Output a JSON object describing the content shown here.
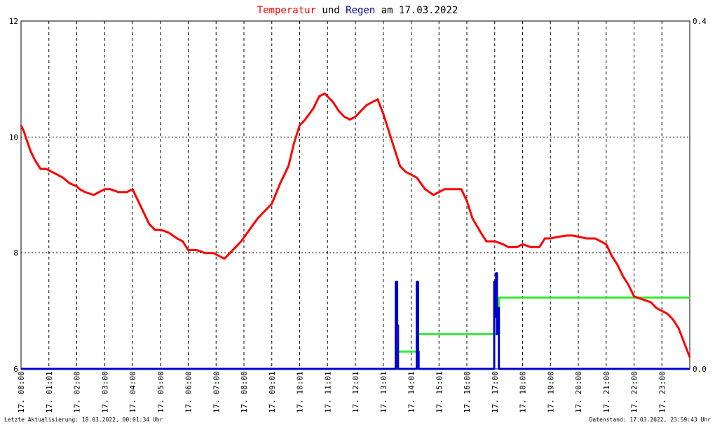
{
  "title": {
    "part1": "Temperatur",
    "part2": " und ",
    "part3": "Regen",
    "part4": " am 17.03.2022",
    "color_temp": "#ff0000",
    "color_rain": "#00008b",
    "color_text": "#000000"
  },
  "footer": {
    "left": "Letzte Aktualisierung: 18.03.2022, 00:01:34 Uhr",
    "right": "Datenstand: 17.03.2022, 23:59:43 Uhr"
  },
  "chart_data": {
    "type": "line",
    "grid": true,
    "x_unit": "hours",
    "xlim": [
      0,
      24
    ],
    "ylim_left": [
      6,
      12
    ],
    "yticks_left": [
      "6",
      "8",
      "10",
      "12"
    ],
    "ylim_right": [
      0,
      0.4
    ],
    "yticks_right": [
      "0.0",
      "0.4"
    ],
    "x_tick_labels": [
      "17. 00:00",
      "17. 01:01",
      "17. 02:00",
      "17. 03:00",
      "17. 04:00",
      "17. 05:00",
      "17. 06:00",
      "17. 07:00",
      "17. 08:00",
      "17. 09:01",
      "17. 10:01",
      "17. 11:01",
      "17. 12:01",
      "17. 13:01",
      "17. 14:01",
      "17. 15:01",
      "17. 16:00",
      "17. 17:00",
      "17. 18:00",
      "17. 19:00",
      "17. 20:00",
      "17. 21:00",
      "17. 22:00",
      "17. 23:00"
    ],
    "colors": {
      "temperature": "#ff0000",
      "rain": "#0000cc",
      "rain_sum": "#33ee33",
      "grid": "#000000"
    },
    "series": [
      {
        "role": "temperature",
        "axis": "left",
        "x": [
          0,
          0.1,
          0.2,
          0.35,
          0.5,
          0.7,
          0.9,
          1.1,
          1.3,
          1.5,
          1.75,
          2.0,
          2.1,
          2.3,
          2.6,
          2.8,
          3.0,
          3.2,
          3.5,
          3.8,
          4.0,
          4.2,
          4.4,
          4.6,
          4.8,
          5.0,
          5.3,
          5.6,
          5.8,
          6.0,
          6.3,
          6.6,
          6.9,
          7.1,
          7.3,
          7.5,
          7.7,
          7.9,
          8.2,
          8.5,
          8.8,
          9.0,
          9.3,
          9.6,
          9.8,
          10.0,
          10.2,
          10.5,
          10.7,
          10.9,
          11.0,
          11.2,
          11.4,
          11.6,
          11.8,
          12.0,
          12.2,
          12.4,
          12.6,
          12.8,
          13.0,
          13.2,
          13.4,
          13.6,
          13.8,
          14.0,
          14.2,
          14.5,
          14.8,
          15.0,
          15.2,
          15.5,
          15.8,
          16.0,
          16.2,
          16.5,
          16.7,
          17.0,
          17.3,
          17.5,
          17.8,
          18.0,
          18.3,
          18.6,
          18.8,
          19.0,
          19.3,
          19.6,
          19.8,
          20.0,
          20.3,
          20.6,
          20.8,
          21.0,
          21.2,
          21.4,
          21.6,
          21.8,
          22.0,
          22.3,
          22.6,
          22.8,
          23.0,
          23.2,
          23.4,
          23.6,
          23.8,
          24.0
        ],
        "y": [
          10.2,
          10.1,
          9.95,
          9.75,
          9.6,
          9.45,
          9.45,
          9.4,
          9.35,
          9.3,
          9.2,
          9.15,
          9.1,
          9.05,
          9.0,
          9.05,
          9.1,
          9.1,
          9.05,
          9.05,
          9.1,
          8.9,
          8.7,
          8.5,
          8.4,
          8.4,
          8.35,
          8.25,
          8.2,
          8.05,
          8.05,
          8.0,
          8.0,
          7.95,
          7.9,
          8.0,
          8.1,
          8.2,
          8.4,
          8.6,
          8.75,
          8.85,
          9.2,
          9.5,
          9.9,
          10.2,
          10.3,
          10.5,
          10.7,
          10.75,
          10.7,
          10.6,
          10.45,
          10.35,
          10.3,
          10.35,
          10.45,
          10.55,
          10.6,
          10.65,
          10.4,
          10.1,
          9.8,
          9.5,
          9.4,
          9.35,
          9.3,
          9.1,
          9.0,
          9.05,
          9.1,
          9.1,
          9.1,
          8.9,
          8.6,
          8.35,
          8.2,
          8.2,
          8.15,
          8.1,
          8.1,
          8.15,
          8.1,
          8.1,
          8.25,
          8.25,
          8.28,
          8.3,
          8.3,
          8.28,
          8.25,
          8.25,
          8.2,
          8.15,
          7.95,
          7.8,
          7.6,
          7.45,
          7.25,
          7.2,
          7.15,
          7.05,
          7.0,
          6.95,
          6.85,
          6.7,
          6.45,
          6.2
        ]
      },
      {
        "role": "rain",
        "axis": "right",
        "x": [
          0,
          13.45,
          13.45,
          13.5,
          13.5,
          13.53,
          13.53,
          14.2,
          14.2,
          14.25,
          14.25,
          14.27,
          14.27,
          16.98,
          16.98,
          17.0,
          17.0,
          17.05,
          17.05,
          17.08,
          17.08,
          17.12,
          17.12,
          17.15,
          17.15,
          24
        ],
        "y": [
          0,
          0,
          0.1,
          0.1,
          0.05,
          0.05,
          0,
          0,
          0.1,
          0.1,
          0.02,
          0.02,
          0,
          0,
          0.1,
          0.1,
          0.06,
          0.06,
          0.11,
          0.11,
          0.04,
          0.04,
          0.07,
          0.07,
          0,
          0
        ]
      },
      {
        "role": "rain_sum",
        "axis": "right",
        "x": [
          0,
          13.5,
          13.5,
          14.2,
          14.2,
          16.95,
          16.95,
          17.15,
          17.15,
          24
        ],
        "y": [
          0,
          0,
          0.02,
          0.02,
          0.04,
          0.04,
          0.04,
          0.04,
          0.082,
          0.082
        ]
      }
    ]
  }
}
